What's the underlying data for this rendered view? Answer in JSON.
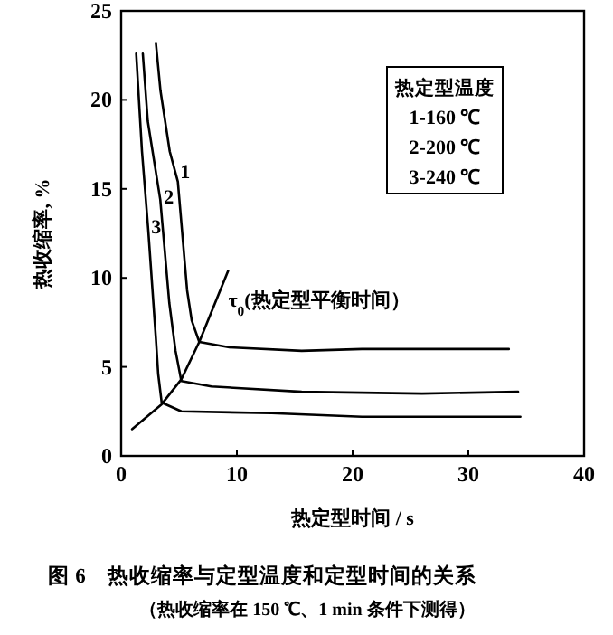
{
  "chart_data": {
    "type": "line",
    "title": "图 6　热收缩率与定型温度和定型时间的关系",
    "subtitle": "（热收缩率在 150 ℃、1 min 条件下测得）",
    "xlabel": "热定型时间 / s",
    "ylabel": "热收缩率, %",
    "xlim": [
      0,
      40
    ],
    "ylim": [
      0,
      25
    ],
    "xticks": [
      0,
      10,
      20,
      30,
      40
    ],
    "yticks": [
      0,
      5,
      10,
      15,
      20,
      25
    ],
    "grid": false,
    "marker": "none",
    "line_style": "solid",
    "series": [
      {
        "color": "#000000",
        "x": [
          3.0,
          3.4,
          4.2,
          4.9,
          5.7,
          6.1,
          6.75,
          9.35,
          15.6,
          20.8,
          33.5
        ],
        "values": [
          23.2,
          20.5,
          17.1,
          15.4,
          9.3,
          7.6,
          6.4,
          6.1,
          5.9,
          6.0,
          6.0
        ]
      },
      {
        "color": "#000000",
        "x": [
          1.87,
          2.3,
          3.38,
          4.16,
          4.7,
          5.2,
          7.8,
          15.6,
          26,
          34.3
        ],
        "values": [
          22.6,
          18.8,
          14.4,
          8.6,
          5.9,
          4.2,
          3.9,
          3.6,
          3.5,
          3.6
        ]
      },
      {
        "color": "#000000",
        "x": [
          1.3,
          1.8,
          2.34,
          3.0,
          3.2,
          3.5,
          5.2,
          13,
          20.8,
          34.5
        ],
        "values": [
          22.6,
          17.1,
          12.7,
          6.6,
          4.6,
          3.0,
          2.5,
          2.4,
          2.2,
          2.2
        ]
      },
      {
        "color": "#000000",
        "x": [
          0.94,
          3.5,
          5.2,
          6.75,
          9.25
        ],
        "values": [
          1.5,
          2.9,
          4.3,
          6.4,
          10.4
        ]
      }
    ],
    "annotations": [
      {
        "text": "1",
        "x": 5.1,
        "y": 15.6
      },
      {
        "text": "2",
        "x": 3.7,
        "y": 14.2
      },
      {
        "text": "3",
        "x": 2.6,
        "y": 12.5
      },
      {
        "text": "τ$_{0}$(热定型平衡时间）",
        "x": 8,
        "y": 8.4
      },
      "热定型温度",
      "1-160 ℃",
      "2-200 ℃",
      "3-240 ℃"
    ]
  }
}
